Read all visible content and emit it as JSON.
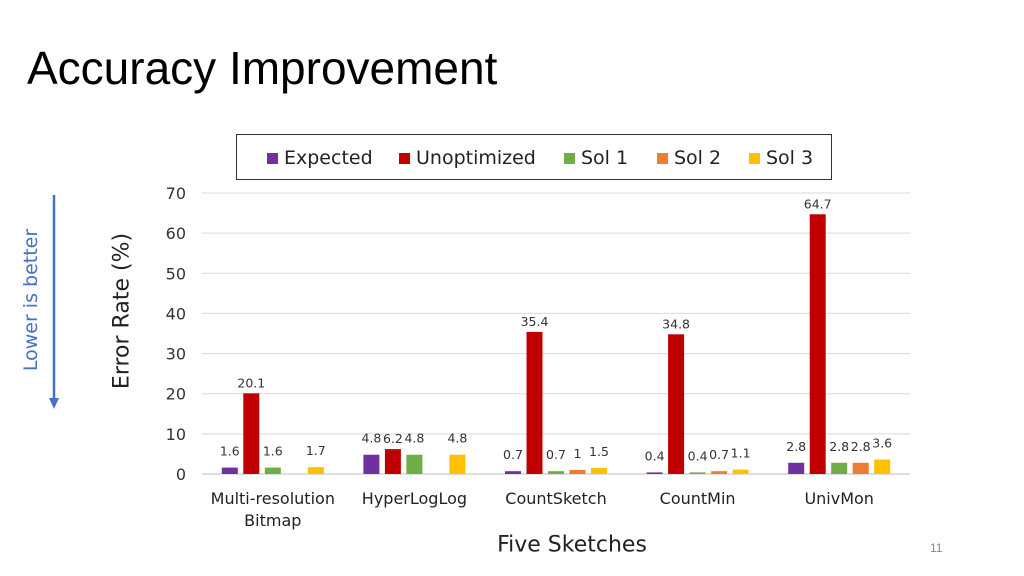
{
  "slide": {
    "title": "Accuracy Improvement",
    "side_note": "Lower is better",
    "page_number": "11"
  },
  "colors": {
    "expected": "#7030A0",
    "unoptimized": "#C00000",
    "sol1": "#70AD47",
    "sol2": "#ED7D31",
    "sol3": "#FFC000",
    "arrow": "#4472C4",
    "grid": "#d9d9d9"
  },
  "chart_data": {
    "type": "bar",
    "xlabel": "Five Sketches",
    "ylabel": "Error Rate (%)",
    "ylim": [
      0,
      70
    ],
    "yticks": [
      0,
      10,
      20,
      30,
      40,
      50,
      60,
      70
    ],
    "grid": true,
    "legend_position": "top",
    "categories": [
      "Multi-resolution\nBitmap",
      "HyperLogLog",
      "CountSketch",
      "CountMin",
      "UnivMon"
    ],
    "series": [
      {
        "name": "Expected",
        "values": [
          1.6,
          4.8,
          0.7,
          0.4,
          2.8
        ],
        "labels": [
          "1.6",
          "4.8",
          "0.7",
          "0.4",
          "2.8"
        ]
      },
      {
        "name": "Unoptimized",
        "values": [
          20.1,
          6.2,
          35.4,
          34.8,
          64.7
        ],
        "labels": [
          "20.1",
          "6.2",
          "35.4",
          "34.8",
          "64.7"
        ]
      },
      {
        "name": "Sol 1",
        "values": [
          1.6,
          4.8,
          0.7,
          0.4,
          2.8
        ],
        "labels": [
          "1.6",
          "4.8",
          "0.7",
          "0.4",
          "2.8"
        ]
      },
      {
        "name": "Sol 2",
        "values": [
          null,
          null,
          1,
          0.7,
          2.8
        ],
        "labels": [
          "",
          "",
          "1",
          "0.7",
          "2.8"
        ]
      },
      {
        "name": "Sol 3",
        "values": [
          1.7,
          4.8,
          1.5,
          1.1,
          3.6
        ],
        "labels": [
          "1.7",
          "4.8",
          "1.5",
          "1.1",
          "3.6"
        ]
      }
    ]
  }
}
